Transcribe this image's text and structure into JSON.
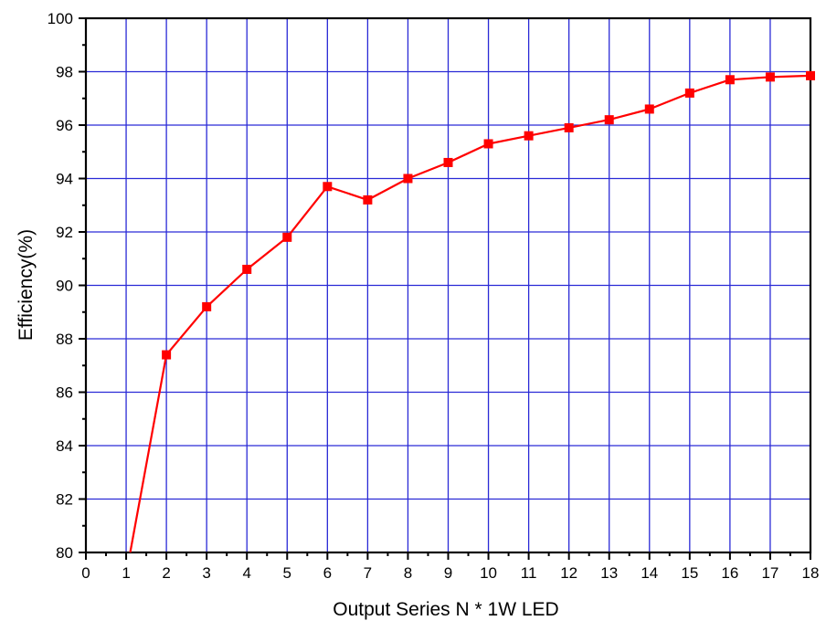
{
  "chart_data": {
    "type": "line",
    "xlabel": "Output Series N * 1W LED",
    "ylabel": "Efficiency(%)",
    "xlim": [
      0,
      18
    ],
    "ylim": [
      80,
      100
    ],
    "x_ticks": [
      "0",
      "1",
      "2",
      "3",
      "4",
      "5",
      "6",
      "7",
      "8",
      "9",
      "10",
      "11",
      "12",
      "13",
      "14",
      "15",
      "16",
      "17",
      "18"
    ],
    "y_ticks": [
      "80",
      "82",
      "84",
      "86",
      "88",
      "90",
      "92",
      "94",
      "96",
      "98",
      "100"
    ],
    "grid": true,
    "series": [
      {
        "x": [
          1.1,
          2,
          3,
          4,
          5,
          6,
          7,
          8,
          9,
          10,
          11,
          12,
          13,
          14,
          15,
          16,
          17,
          18
        ],
        "values": [
          80.0,
          87.4,
          89.2,
          90.6,
          91.8,
          93.7,
          93.2,
          94.0,
          94.6,
          95.3,
          95.6,
          95.9,
          96.2,
          96.6,
          97.2,
          97.7,
          97.8,
          97.85
        ],
        "markers_from_index": 1
      }
    ]
  },
  "colors": {
    "grid": "#2a2ad6",
    "series": "#ff0000",
    "axis": "#000000"
  }
}
